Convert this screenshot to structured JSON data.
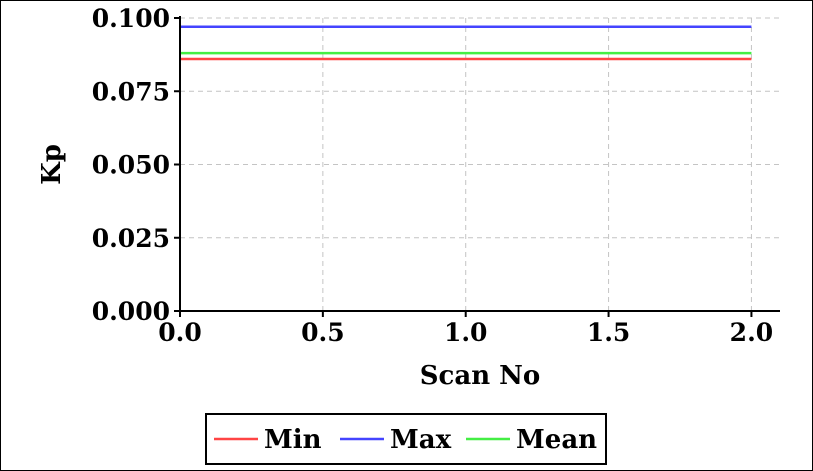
{
  "chart_data": {
    "type": "line",
    "xlabel": "Scan No",
    "ylabel": "Kp",
    "xlim": [
      0.0,
      2.1
    ],
    "ylim": [
      0.0,
      0.1
    ],
    "x_ticks": [
      "0.0",
      "0.5",
      "1.0",
      "1.5",
      "2.0"
    ],
    "x_tick_values": [
      0.0,
      0.5,
      1.0,
      1.5,
      2.0
    ],
    "y_ticks": [
      "0.000",
      "0.025",
      "0.050",
      "0.075",
      "0.100"
    ],
    "y_tick_values": [
      0.0,
      0.025,
      0.05,
      0.075,
      0.1
    ],
    "grid": true,
    "legend_position": "bottom-center",
    "series": [
      {
        "name": "Min",
        "color": "#ff4444",
        "x": [
          0,
          2
        ],
        "values": [
          0.086,
          0.086
        ]
      },
      {
        "name": "Max",
        "color": "#4444ff",
        "x": [
          0,
          2
        ],
        "values": [
          0.097,
          0.097
        ]
      },
      {
        "name": "Mean",
        "color": "#44ee44",
        "x": [
          0,
          2
        ],
        "values": [
          0.088,
          0.088
        ]
      }
    ]
  }
}
